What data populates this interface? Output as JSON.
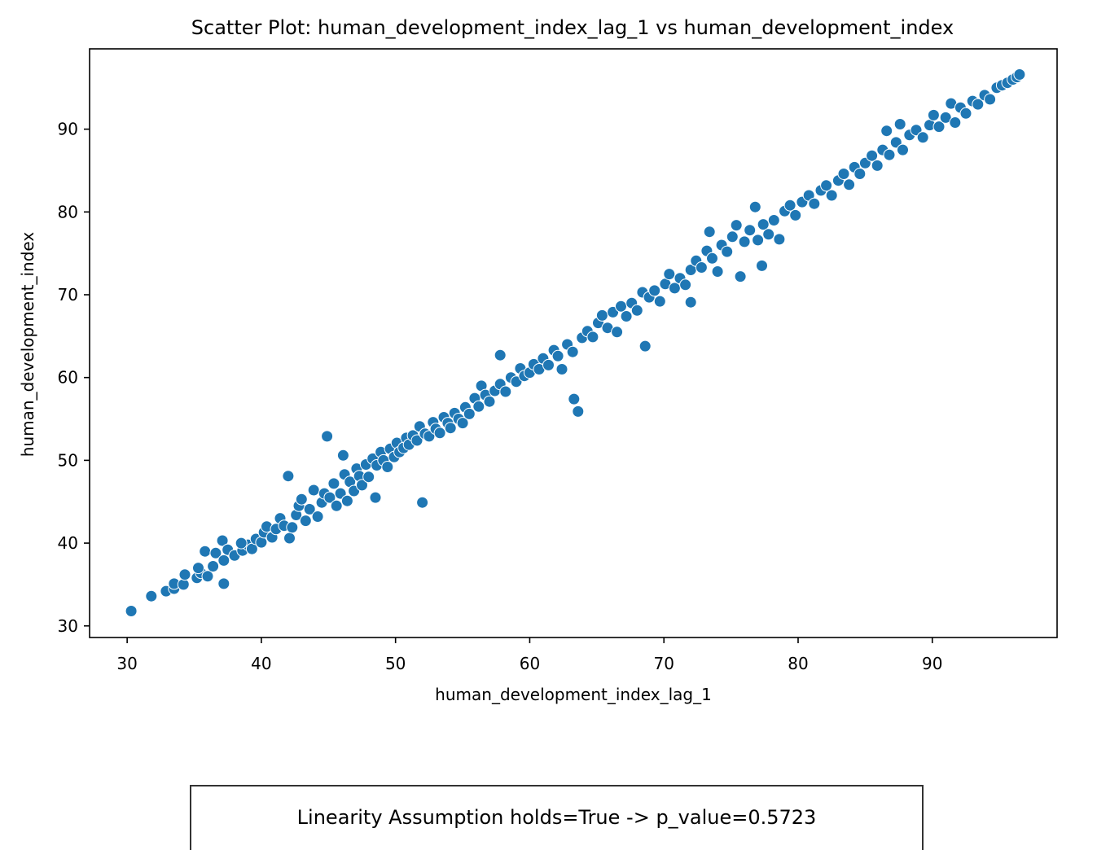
{
  "chart_data": {
    "type": "scatter",
    "title": "Scatter Plot: human_development_index_lag_1 vs human_development_index",
    "xlabel": "human_development_index_lag_1",
    "ylabel": "human_development_index",
    "xlim": [
      27.2,
      99.3
    ],
    "ylim": [
      28.6,
      99.7
    ],
    "xticks": [
      30,
      40,
      50,
      60,
      70,
      80,
      90
    ],
    "yticks": [
      30,
      40,
      50,
      60,
      70,
      80,
      90
    ],
    "grid": false,
    "marker_color": "#1f77b4",
    "marker_edge_color": "#ffffff",
    "points": [
      [
        30.3,
        31.8
      ],
      [
        31.8,
        33.6
      ],
      [
        32.9,
        34.2
      ],
      [
        33.5,
        34.5
      ],
      [
        33.5,
        35.1
      ],
      [
        34.2,
        35.0
      ],
      [
        34.3,
        36.2
      ],
      [
        35.2,
        35.8
      ],
      [
        35.5,
        36.4
      ],
      [
        35.3,
        37.0
      ],
      [
        36.0,
        36.0
      ],
      [
        35.8,
        39.0
      ],
      [
        36.4,
        37.2
      ],
      [
        36.6,
        38.8
      ],
      [
        37.2,
        37.9
      ],
      [
        37.1,
        40.3
      ],
      [
        37.5,
        39.2
      ],
      [
        37.2,
        35.1
      ],
      [
        38.0,
        38.5
      ],
      [
        38.6,
        39.1
      ],
      [
        39.0,
        39.8
      ],
      [
        38.5,
        40.0
      ],
      [
        39.3,
        39.3
      ],
      [
        39.6,
        40.5
      ],
      [
        40.0,
        40.1
      ],
      [
        40.2,
        41.3
      ],
      [
        40.4,
        42.0
      ],
      [
        40.8,
        40.7
      ],
      [
        41.1,
        41.7
      ],
      [
        41.4,
        43.0
      ],
      [
        41.7,
        42.1
      ],
      [
        42.0,
        48.1
      ],
      [
        42.1,
        40.6
      ],
      [
        42.3,
        41.9
      ],
      [
        42.6,
        43.4
      ],
      [
        42.8,
        44.5
      ],
      [
        43.0,
        45.3
      ],
      [
        43.3,
        42.7
      ],
      [
        43.6,
        44.1
      ],
      [
        43.9,
        46.4
      ],
      [
        44.2,
        43.2
      ],
      [
        44.5,
        44.9
      ],
      [
        44.9,
        52.9
      ],
      [
        44.7,
        46.0
      ],
      [
        45.1,
        45.5
      ],
      [
        45.4,
        47.2
      ],
      [
        45.6,
        44.5
      ],
      [
        45.9,
        46.0
      ],
      [
        46.1,
        50.6
      ],
      [
        46.2,
        48.3
      ],
      [
        46.4,
        45.1
      ],
      [
        46.6,
        47.4
      ],
      [
        46.9,
        46.3
      ],
      [
        47.1,
        49.0
      ],
      [
        47.3,
        48.1
      ],
      [
        47.5,
        47.0
      ],
      [
        47.8,
        49.5
      ],
      [
        48.0,
        48.0
      ],
      [
        48.3,
        50.2
      ],
      [
        48.5,
        45.5
      ],
      [
        48.6,
        49.4
      ],
      [
        48.9,
        51.0
      ],
      [
        49.1,
        50.0
      ],
      [
        49.4,
        49.2
      ],
      [
        49.6,
        51.4
      ],
      [
        49.9,
        50.4
      ],
      [
        50.1,
        52.1
      ],
      [
        50.3,
        51.0
      ],
      [
        50.6,
        51.5
      ],
      [
        50.8,
        52.7
      ],
      [
        51.0,
        51.9
      ],
      [
        51.3,
        53.0
      ],
      [
        51.6,
        52.4
      ],
      [
        51.8,
        54.1
      ],
      [
        52.0,
        44.9
      ],
      [
        52.2,
        53.2
      ],
      [
        52.5,
        52.9
      ],
      [
        52.8,
        54.6
      ],
      [
        53.0,
        53.8
      ],
      [
        53.3,
        53.3
      ],
      [
        53.6,
        55.2
      ],
      [
        53.9,
        54.5
      ],
      [
        54.1,
        53.9
      ],
      [
        54.4,
        55.7
      ],
      [
        54.7,
        55.0
      ],
      [
        55.0,
        54.5
      ],
      [
        55.2,
        56.4
      ],
      [
        55.5,
        55.6
      ],
      [
        55.9,
        57.5
      ],
      [
        56.2,
        56.5
      ],
      [
        56.4,
        59.0
      ],
      [
        56.7,
        57.9
      ],
      [
        57.0,
        57.1
      ],
      [
        57.4,
        58.4
      ],
      [
        57.8,
        62.7
      ],
      [
        57.8,
        59.2
      ],
      [
        58.2,
        58.3
      ],
      [
        58.6,
        60.0
      ],
      [
        59.0,
        59.5
      ],
      [
        59.3,
        61.1
      ],
      [
        59.6,
        60.2
      ],
      [
        60.0,
        60.6
      ],
      [
        60.3,
        61.6
      ],
      [
        60.7,
        61.0
      ],
      [
        61.0,
        62.3
      ],
      [
        61.4,
        61.5
      ],
      [
        61.8,
        63.3
      ],
      [
        62.1,
        62.6
      ],
      [
        62.4,
        61.0
      ],
      [
        62.8,
        64.0
      ],
      [
        63.2,
        63.1
      ],
      [
        63.3,
        57.4
      ],
      [
        63.6,
        55.9
      ],
      [
        63.9,
        64.8
      ],
      [
        64.3,
        65.6
      ],
      [
        64.7,
        64.9
      ],
      [
        65.1,
        66.6
      ],
      [
        65.4,
        67.5
      ],
      [
        65.8,
        66.0
      ],
      [
        66.2,
        67.9
      ],
      [
        66.5,
        65.5
      ],
      [
        66.8,
        68.6
      ],
      [
        67.2,
        67.4
      ],
      [
        67.6,
        69.0
      ],
      [
        68.0,
        68.1
      ],
      [
        68.4,
        70.3
      ],
      [
        68.6,
        63.8
      ],
      [
        68.9,
        69.7
      ],
      [
        69.3,
        70.5
      ],
      [
        69.7,
        69.2
      ],
      [
        70.1,
        71.3
      ],
      [
        70.4,
        72.5
      ],
      [
        70.8,
        70.8
      ],
      [
        71.2,
        72.0
      ],
      [
        71.6,
        71.2
      ],
      [
        72.0,
        73.0
      ],
      [
        72.0,
        69.1
      ],
      [
        72.4,
        74.1
      ],
      [
        72.8,
        73.3
      ],
      [
        73.2,
        75.3
      ],
      [
        73.4,
        77.6
      ],
      [
        73.6,
        74.4
      ],
      [
        74.0,
        72.8
      ],
      [
        74.3,
        76.0
      ],
      [
        74.7,
        75.2
      ],
      [
        75.1,
        77.0
      ],
      [
        75.4,
        78.4
      ],
      [
        75.7,
        72.2
      ],
      [
        76.0,
        76.4
      ],
      [
        76.4,
        77.8
      ],
      [
        76.8,
        80.6
      ],
      [
        77.0,
        76.6
      ],
      [
        77.3,
        73.5
      ],
      [
        77.4,
        78.5
      ],
      [
        77.8,
        77.3
      ],
      [
        78.2,
        79.0
      ],
      [
        78.6,
        76.7
      ],
      [
        79.0,
        80.1
      ],
      [
        79.4,
        80.8
      ],
      [
        79.8,
        79.6
      ],
      [
        80.3,
        81.2
      ],
      [
        80.8,
        82.0
      ],
      [
        81.2,
        81.0
      ],
      [
        81.7,
        82.6
      ],
      [
        82.1,
        83.2
      ],
      [
        82.5,
        82.0
      ],
      [
        83.0,
        83.8
      ],
      [
        83.4,
        84.6
      ],
      [
        83.8,
        83.3
      ],
      [
        84.2,
        85.4
      ],
      [
        84.6,
        84.6
      ],
      [
        85.0,
        85.9
      ],
      [
        85.5,
        86.8
      ],
      [
        85.9,
        85.6
      ],
      [
        86.3,
        87.5
      ],
      [
        86.6,
        89.8
      ],
      [
        86.8,
        86.9
      ],
      [
        87.3,
        88.4
      ],
      [
        87.6,
        90.6
      ],
      [
        87.8,
        87.5
      ],
      [
        88.3,
        89.3
      ],
      [
        88.8,
        89.9
      ],
      [
        89.3,
        89.0
      ],
      [
        89.8,
        90.5
      ],
      [
        90.1,
        91.7
      ],
      [
        90.5,
        90.3
      ],
      [
        91.0,
        91.4
      ],
      [
        91.4,
        93.1
      ],
      [
        91.7,
        90.8
      ],
      [
        92.1,
        92.6
      ],
      [
        92.5,
        91.9
      ],
      [
        93.0,
        93.4
      ],
      [
        93.4,
        93.0
      ],
      [
        93.9,
        94.1
      ],
      [
        94.3,
        93.6
      ],
      [
        94.8,
        95.0
      ],
      [
        95.2,
        95.3
      ],
      [
        95.6,
        95.6
      ],
      [
        96.0,
        96.0
      ],
      [
        96.3,
        96.3
      ],
      [
        96.5,
        96.6
      ]
    ]
  },
  "annotation": {
    "text": "Linearity Assumption holds=True -> p_value=0.5723"
  }
}
